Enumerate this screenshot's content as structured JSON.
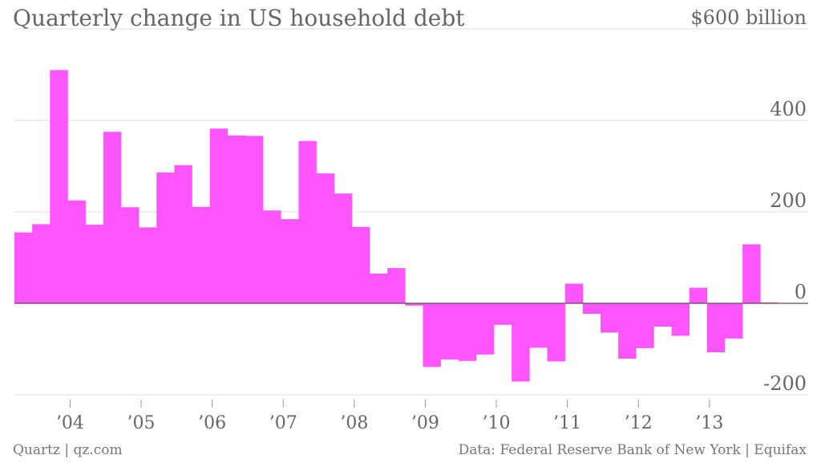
{
  "title": "Quarterly change in US household debt",
  "footer": {
    "source_left": "Quartz | qz.com",
    "source_right": "Data: Federal Reserve Bank of New York | Equifax"
  },
  "colors": {
    "bar": "#ff55ff",
    "grid": "#dddddd",
    "zero_line": "#555555",
    "text": "#666666"
  },
  "chart_data": {
    "type": "bar",
    "title": "Quarterly change in US household debt",
    "unit": "$ billion",
    "ylim": [
      -200,
      600
    ],
    "yticks": [
      {
        "value": 600,
        "label": "$600 billion"
      },
      {
        "value": 400,
        "label": "400"
      },
      {
        "value": 200,
        "label": "200"
      },
      {
        "value": 0,
        "label": "0"
      },
      {
        "value": -200,
        "label": "-200"
      }
    ],
    "xticks": [
      "’04",
      "’05",
      "’06",
      "’07",
      "’08",
      "’09",
      "’10",
      "’11",
      "’12",
      "’13"
    ],
    "grid": true,
    "start": "2003 Q2",
    "categories": [
      "2003 Q2",
      "2003 Q3",
      "2003 Q4",
      "2004 Q1",
      "2004 Q2",
      "2004 Q3",
      "2004 Q4",
      "2005 Q1",
      "2005 Q2",
      "2005 Q3",
      "2005 Q4",
      "2006 Q1",
      "2006 Q2",
      "2006 Q3",
      "2006 Q4",
      "2007 Q1",
      "2007 Q2",
      "2007 Q3",
      "2007 Q4",
      "2008 Q1",
      "2008 Q2",
      "2008 Q3",
      "2008 Q4",
      "2009 Q1",
      "2009 Q2",
      "2009 Q3",
      "2009 Q4",
      "2010 Q1",
      "2010 Q2",
      "2010 Q3",
      "2010 Q4",
      "2011 Q1",
      "2011 Q2",
      "2011 Q3",
      "2011 Q4",
      "2012 Q1",
      "2012 Q2",
      "2012 Q3",
      "2012 Q4",
      "2013 Q1",
      "2013 Q2",
      "2013 Q3",
      "2013 Q4"
    ],
    "values": [
      155,
      173,
      510,
      225,
      172,
      375,
      210,
      166,
      286,
      302,
      211,
      382,
      367,
      366,
      203,
      184,
      355,
      284,
      240,
      167,
      65,
      77,
      -5,
      -139,
      -123,
      -126,
      -112,
      -47,
      -171,
      -97,
      -127,
      43,
      -23,
      -64,
      -121,
      -98,
      -51,
      -71,
      34,
      -107,
      -77,
      129,
      2
    ]
  }
}
